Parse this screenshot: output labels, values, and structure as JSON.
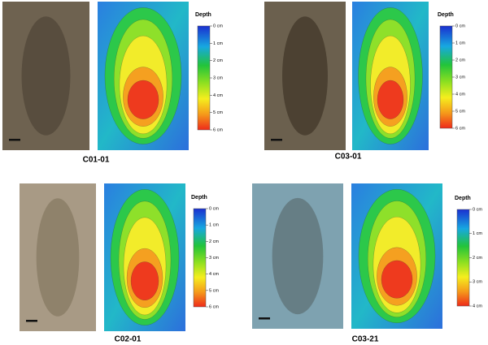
{
  "panels": [
    {
      "label": "C01-01",
      "legend_title": "Depth",
      "legend_ticks": [
        "0 cm",
        "1 cm",
        "2 cm",
        "3 cm",
        "4 cm",
        "5 cm",
        "6 cm"
      ]
    },
    {
      "label": "C03-01",
      "legend_title": "Depth",
      "legend_ticks": [
        "0 cm",
        "1 cm",
        "2 cm",
        "3 cm",
        "4 cm",
        "5 cm",
        "6 cm"
      ]
    },
    {
      "label": "C02-01",
      "legend_title": "Depth",
      "legend_ticks": [
        "0 cm",
        "1 cm",
        "2 cm",
        "3 cm",
        "4 cm",
        "5 cm",
        "6 cm"
      ]
    },
    {
      "label": "C03-21",
      "legend_title": "Depth",
      "legend_ticks": [
        "0 cm",
        "1 cm",
        "2 cm",
        "3 cm",
        "4 cm"
      ]
    }
  ]
}
